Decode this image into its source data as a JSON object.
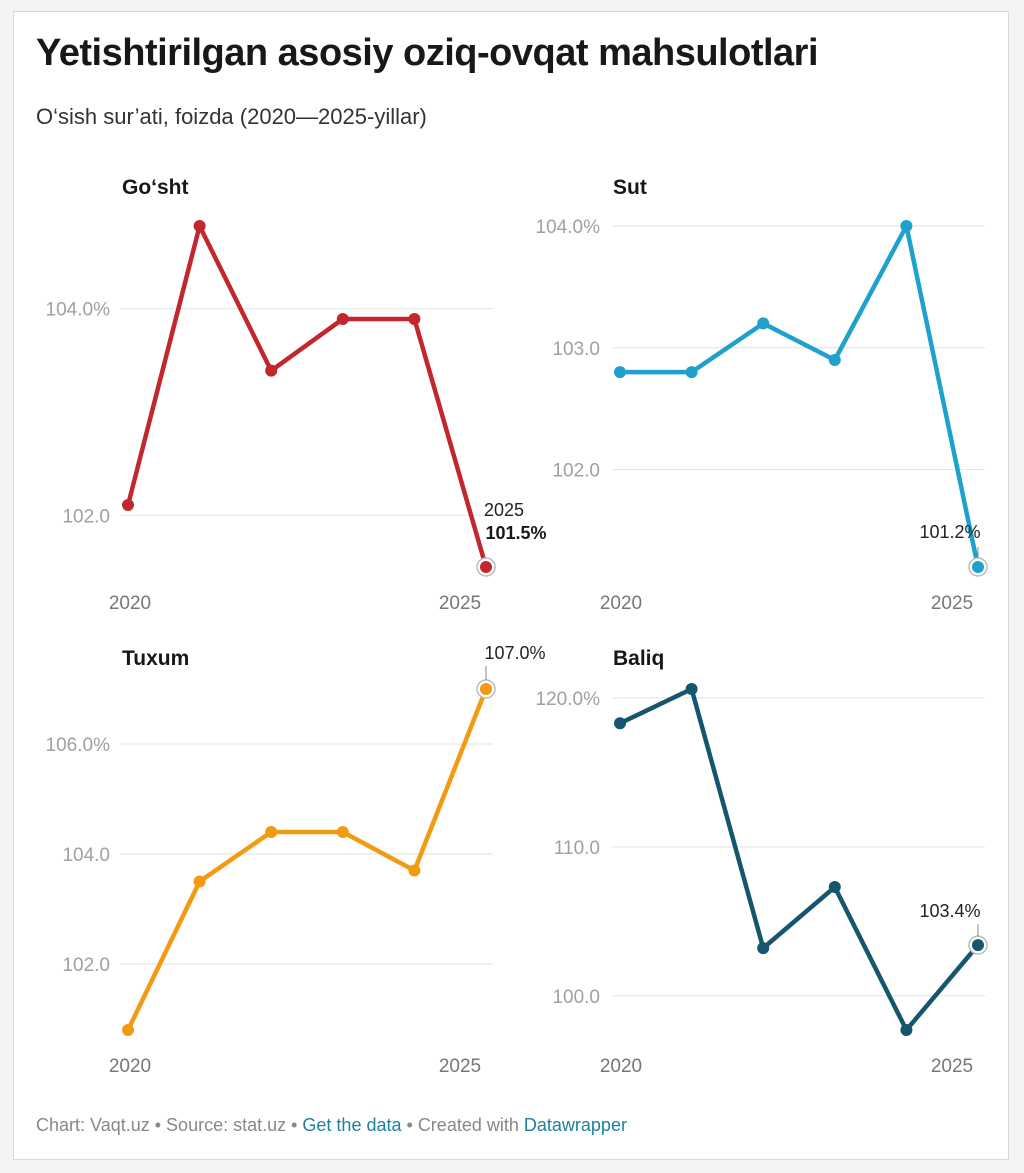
{
  "title": "Yetishtirilgan asosiy oziq-ovqat mahsulotlari",
  "subtitle": "O‘sish sur’ati, foizda (2020—2025-yillar)",
  "footer": {
    "chart_credit": "Chart: Vaqt.uz",
    "separator": " • ",
    "source": "Source: stat.uz",
    "get_data": "Get the data",
    "created_with": "Created with",
    "datawrapper": "Datawrapper"
  },
  "chart_data": [
    {
      "type": "line",
      "title": "Go‘sht",
      "color": "#c1272d",
      "x": [
        2020,
        2021,
        2022,
        2023,
        2024,
        2025
      ],
      "values": [
        102.1,
        104.8,
        103.4,
        103.9,
        103.9,
        101.5
      ],
      "ylim": [
        101.5,
        104.8
      ],
      "yticks": [
        102,
        104
      ],
      "ytick_labels": [
        "102.0",
        "104.0%"
      ],
      "xtick_labels": [
        "2020",
        "2025"
      ],
      "annotation": {
        "year": "2025",
        "value": "101.5%"
      }
    },
    {
      "type": "line",
      "title": "Sut",
      "color": "#1ea1cc",
      "x": [
        2020,
        2021,
        2022,
        2023,
        2024,
        2025
      ],
      "values": [
        102.8,
        102.8,
        103.2,
        102.9,
        104.0,
        101.2
      ],
      "ylim": [
        101.2,
        104.0
      ],
      "yticks": [
        102,
        103,
        104
      ],
      "ytick_labels": [
        "102.0",
        "103.0",
        "104.0%"
      ],
      "xtick_labels": [
        "2020",
        "2025"
      ],
      "annotation": {
        "value": "101.2%"
      }
    },
    {
      "type": "line",
      "title": "Tuxum",
      "color": "#f39a13",
      "x": [
        2020,
        2021,
        2022,
        2023,
        2024,
        2025
      ],
      "values": [
        100.8,
        103.5,
        104.4,
        104.4,
        103.7,
        107.0
      ],
      "ylim": [
        100.8,
        107.0
      ],
      "yticks": [
        102,
        104,
        106
      ],
      "ytick_labels": [
        "102.0",
        "104.0",
        "106.0%"
      ],
      "xtick_labels": [
        "2020",
        "2025"
      ],
      "annotation": {
        "value": "107.0%"
      }
    },
    {
      "type": "line",
      "title": "Baliq",
      "color": "#15566e",
      "x": [
        2020,
        2021,
        2022,
        2023,
        2024,
        2025
      ],
      "values": [
        118.3,
        120.6,
        103.2,
        107.3,
        97.7,
        103.4
      ],
      "ylim": [
        97.7,
        120.6
      ],
      "yticks": [
        100,
        110,
        120
      ],
      "ytick_labels": [
        "100.0",
        "110.0",
        "120.0%"
      ],
      "xtick_labels": [
        "2020",
        "2025"
      ],
      "annotation": {
        "value": "103.4%"
      }
    }
  ]
}
